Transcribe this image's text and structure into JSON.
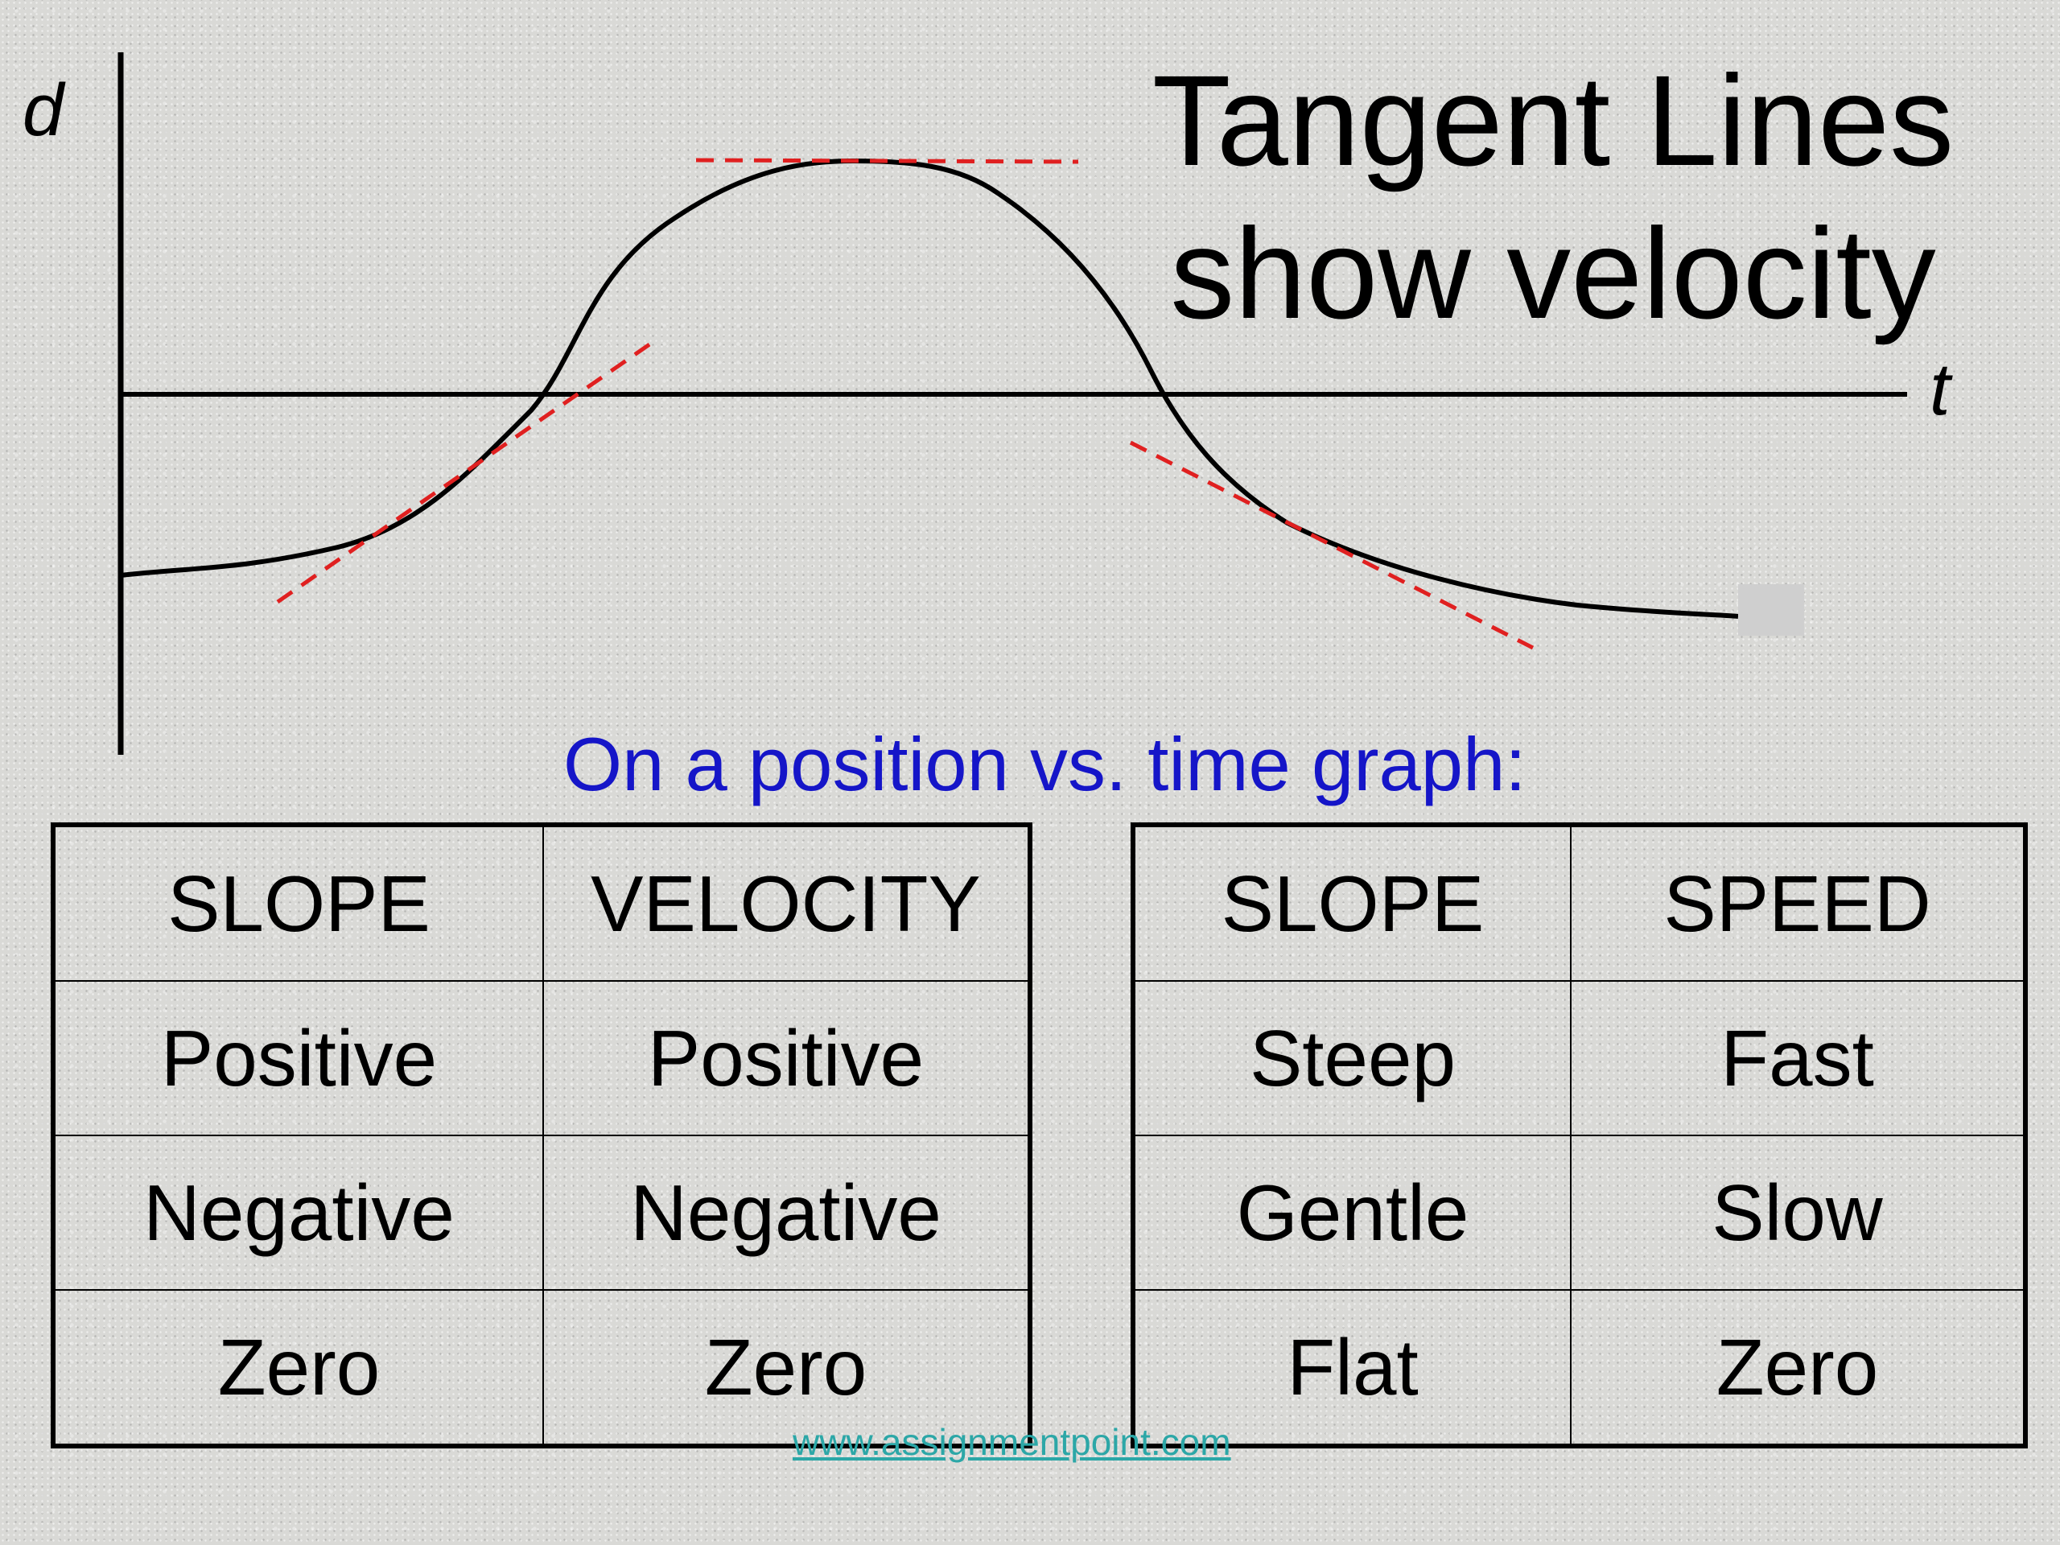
{
  "title": {
    "line1": "Tangent Lines",
    "line2": "show velocity"
  },
  "axes": {
    "y_label": "d",
    "x_label": "t"
  },
  "subtitle": "On a position vs. time graph:",
  "colors": {
    "curve": "#000000",
    "tangent": "#e02020",
    "subtitle": "#1515c8",
    "footer": "#2ca7a7"
  },
  "table_velocity": {
    "headers": [
      "SLOPE",
      "VELOCITY"
    ],
    "rows": [
      [
        "Positive",
        "Positive"
      ],
      [
        "Negative",
        "Negative"
      ],
      [
        "Zero",
        "Zero"
      ]
    ]
  },
  "table_speed": {
    "headers": [
      "SLOPE",
      "SPEED"
    ],
    "rows": [
      [
        "Steep",
        "Fast"
      ],
      [
        "Gentle",
        "Slow"
      ],
      [
        "Flat",
        "Zero"
      ]
    ]
  },
  "footer": "www.assignmentpoint.com"
}
